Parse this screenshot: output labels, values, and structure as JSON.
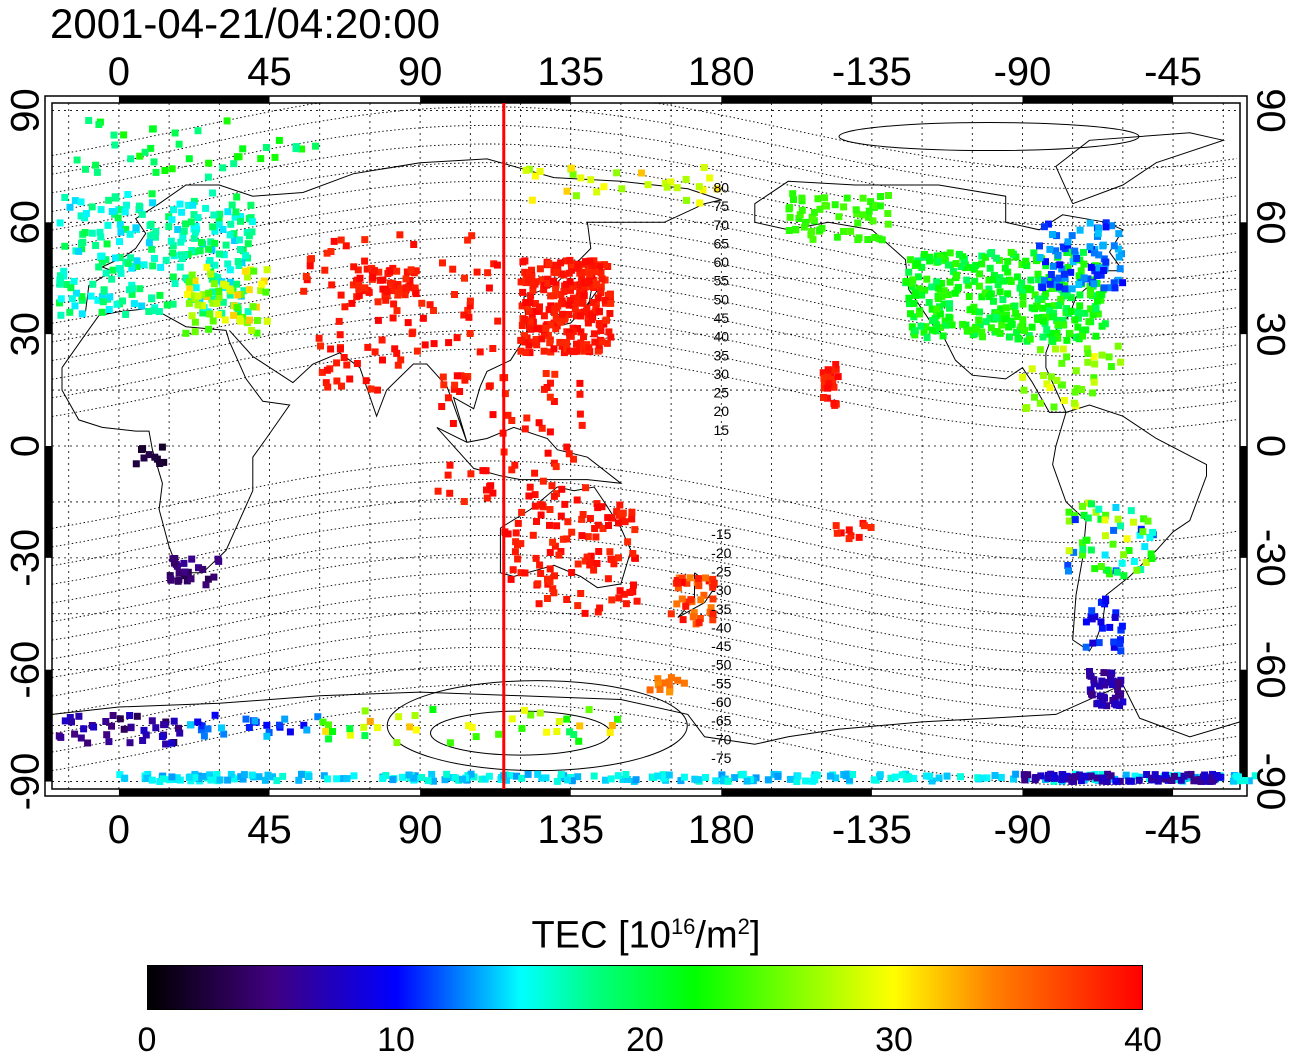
{
  "timestamp": "2001-04-21/04:20:00",
  "map": {
    "top_lon_ticks": [
      "0",
      "45",
      "90",
      "135",
      "180",
      "-135",
      "-90",
      "-45"
    ],
    "bottom_lon_ticks": [
      "0",
      "45",
      "90",
      "135",
      "180",
      "-135",
      "-90",
      "-45"
    ],
    "left_lat_ticks": [
      "90",
      "60",
      "30",
      "0",
      "-30",
      "-60",
      "-90"
    ],
    "right_lat_ticks": [
      "90",
      "60",
      "30",
      "0",
      "-30",
      "-60",
      "-90"
    ],
    "lon_range": [
      -20,
      335
    ],
    "lat_range": [
      -92,
      92
    ],
    "meridian_longitude": 115,
    "meridian_color": "#ff0000",
    "contour_labels_north": [
      "80",
      "75",
      "70",
      "65",
      "60",
      "55",
      "50",
      "45",
      "40",
      "35",
      "30",
      "25",
      "20",
      "15"
    ],
    "contour_labels_south": [
      "-15",
      "-20",
      "-25",
      "-30",
      "-35",
      "-40",
      "-45",
      "-50",
      "-55",
      "-60",
      "-65",
      "-70",
      "-75"
    ]
  },
  "colorbar": {
    "title_main": "TEC  [10",
    "title_sup1": "16",
    "title_mid": "/m",
    "title_sup2": "2",
    "title_end": "]",
    "min": 0,
    "max": 40,
    "ticks": [
      "0",
      "10",
      "20",
      "30",
      "40"
    ],
    "colors": [
      "#000000",
      "#40007f",
      "#0000ff",
      "#00ffff",
      "#00ff00",
      "#ffff00",
      "#ff8000",
      "#ff0000"
    ]
  }
}
